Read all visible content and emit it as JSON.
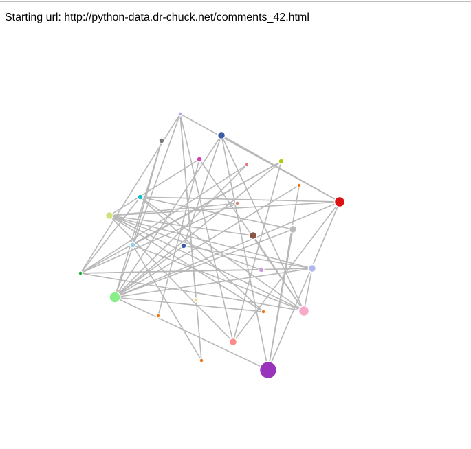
{
  "page": {
    "starting_url": "Starting url: http://python-data.dr-chuck.net/comments_42.html"
  },
  "graph": {
    "link_color": "#b8b8b8",
    "nodes": [
      {
        "id": "n0",
        "color": "#aaaaee",
        "weight": 1
      },
      {
        "id": "n1",
        "color": "#777777",
        "weight": 2
      },
      {
        "id": "n2",
        "color": "#3b5ba8",
        "weight": 3
      },
      {
        "id": "n3",
        "color": "#d63fb8",
        "weight": 2
      },
      {
        "id": "n4",
        "color": "#e07a7a",
        "weight": 1
      },
      {
        "id": "n5",
        "color": "#aacc11",
        "weight": 2
      },
      {
        "id": "n6",
        "color": "#ee7711",
        "weight": 1
      },
      {
        "id": "n7",
        "color": "#dd1111",
        "weight": 5
      },
      {
        "id": "n8",
        "color": "#11bbcc",
        "weight": 2
      },
      {
        "id": "n9",
        "color": "#c98870",
        "weight": 1
      },
      {
        "id": "n10",
        "color": "#d6e07a",
        "weight": 3
      },
      {
        "id": "n11",
        "color": "#bbbbbb",
        "weight": 3
      },
      {
        "id": "n12",
        "color": "#885544",
        "weight": 3
      },
      {
        "id": "n13",
        "color": "#8fd0ee",
        "weight": 2
      },
      {
        "id": "n14",
        "color": "#3b5ba8",
        "weight": 2
      },
      {
        "id": "n15",
        "color": "#c8a0d8",
        "weight": 2
      },
      {
        "id": "n16",
        "color": "#b0b8ee",
        "weight": 3
      },
      {
        "id": "n17",
        "color": "#11aa33",
        "weight": 1
      },
      {
        "id": "n18",
        "color": "#88ee88",
        "weight": 6
      },
      {
        "id": "n19",
        "color": "#ffcc77",
        "weight": 1
      },
      {
        "id": "n20",
        "color": "#ee7711",
        "weight": 1
      },
      {
        "id": "n21",
        "color": "#ee7711",
        "weight": 1
      },
      {
        "id": "n22",
        "color": "#f7aacc",
        "weight": 5
      },
      {
        "id": "n23",
        "color": "#ff8888",
        "weight": 3
      },
      {
        "id": "n24",
        "color": "#ee7711",
        "weight": 1
      },
      {
        "id": "n25",
        "color": "#9933bb",
        "weight": 10
      }
    ],
    "links": [
      [
        "n0",
        "n7"
      ],
      [
        "n0",
        "n17"
      ],
      [
        "n0",
        "n18"
      ],
      [
        "n0",
        "n19"
      ],
      [
        "n0",
        "n23"
      ],
      [
        "n0",
        "n24"
      ],
      [
        "n1",
        "n13"
      ],
      [
        "n1",
        "n18"
      ],
      [
        "n2",
        "n25"
      ],
      [
        "n2",
        "n7"
      ],
      [
        "n2",
        "n18"
      ],
      [
        "n2",
        "n22"
      ],
      [
        "n2",
        "n14"
      ],
      [
        "n3",
        "n20"
      ],
      [
        "n3",
        "n10"
      ],
      [
        "n3",
        "n22"
      ],
      [
        "n4",
        "n18"
      ],
      [
        "n4",
        "n17"
      ],
      [
        "n5",
        "n17"
      ],
      [
        "n5",
        "n23"
      ],
      [
        "n5",
        "n18"
      ],
      [
        "n5",
        "n13"
      ],
      [
        "n6",
        "n25"
      ],
      [
        "n6",
        "n18"
      ],
      [
        "n7",
        "n8"
      ],
      [
        "n7",
        "n25"
      ],
      [
        "n7",
        "n18"
      ],
      [
        "n7",
        "n10"
      ],
      [
        "n7",
        "n23"
      ],
      [
        "n8",
        "n22"
      ],
      [
        "n8",
        "n21"
      ],
      [
        "n8",
        "n17"
      ],
      [
        "n8",
        "n11"
      ],
      [
        "n9",
        "n17"
      ],
      [
        "n9",
        "n10"
      ],
      [
        "n10",
        "n12"
      ],
      [
        "n10",
        "n16"
      ],
      [
        "n10",
        "n22"
      ],
      [
        "n10",
        "n21"
      ],
      [
        "n10",
        "n23"
      ],
      [
        "n10",
        "n15"
      ],
      [
        "n11",
        "n18"
      ],
      [
        "n11",
        "n25"
      ],
      [
        "n12",
        "n22"
      ],
      [
        "n13",
        "n22"
      ],
      [
        "n13",
        "n24"
      ],
      [
        "n14",
        "n18"
      ],
      [
        "n14",
        "n16"
      ],
      [
        "n15",
        "n17"
      ],
      [
        "n16",
        "n18"
      ],
      [
        "n16",
        "n22"
      ],
      [
        "n17",
        "n22"
      ],
      [
        "n17",
        "n16"
      ],
      [
        "n18",
        "n21"
      ],
      [
        "n18",
        "n25"
      ]
    ]
  }
}
